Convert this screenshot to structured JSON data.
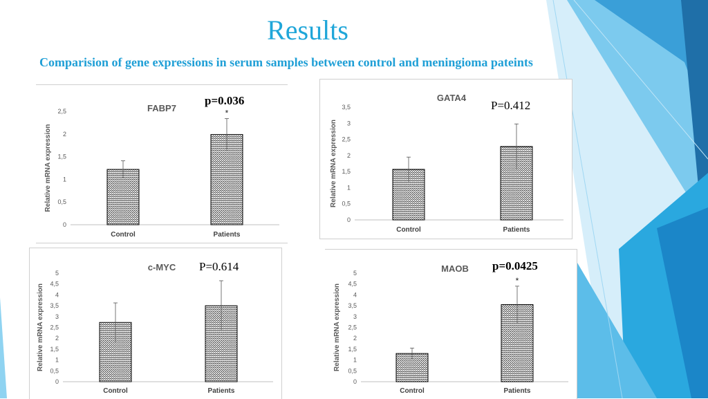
{
  "slide": {
    "title": "Results",
    "subtitle": "Comparision of gene expressions in serum samples between control and meningioma pateints"
  },
  "colors": {
    "title": "#1fa6d9",
    "decor_light": "#8fd3f1",
    "decor_mid": "#2aa8df",
    "decor_dark": "#1f6fa8",
    "bar_pattern": "#333333"
  },
  "chart_data": [
    {
      "type": "bar",
      "title": "FABP7",
      "ylabel": "Relative mRNA expression",
      "categories": [
        "Control",
        "Patients"
      ],
      "values": [
        1.22,
        1.99
      ],
      "errors": [
        0.19,
        0.35
      ],
      "ylim": [
        0,
        2.5
      ],
      "yticks": [
        "0",
        "0,5",
        "1",
        "1,5",
        "2",
        "2,5"
      ],
      "p_value": "p=0.036",
      "significance": [
        "",
        "*"
      ],
      "grid": false
    },
    {
      "type": "bar",
      "title": "GATA4",
      "ylabel": "Relative mRNA expression",
      "categories": [
        "Control",
        "Patients"
      ],
      "values": [
        1.57,
        2.28
      ],
      "errors": [
        0.38,
        0.7
      ],
      "ylim": [
        0,
        3.5
      ],
      "yticks": [
        "0",
        "0,5",
        "1",
        "1,5",
        "2",
        "2,5",
        "3",
        "3,5"
      ],
      "p_value": "P=0.412",
      "significance": [
        "",
        ""
      ],
      "grid": false
    },
    {
      "type": "bar",
      "title": "c-MYC",
      "ylabel": "Relative mRNA expression",
      "categories": [
        "Control",
        "Patients"
      ],
      "values": [
        2.73,
        3.5
      ],
      "errors": [
        0.9,
        1.15
      ],
      "ylim": [
        0,
        5
      ],
      "yticks": [
        "0",
        "0,5",
        "1",
        "1,5",
        "2",
        "2,5",
        "3",
        "3,5",
        "4",
        "4,5",
        "5"
      ],
      "p_value": "P=0.614",
      "significance": [
        "",
        ""
      ],
      "grid": false
    },
    {
      "type": "bar",
      "title": "MAOB",
      "ylabel": "Relative mRNA expression",
      "categories": [
        "Control",
        "Patients"
      ],
      "values": [
        1.3,
        3.55
      ],
      "errors": [
        0.25,
        0.85
      ],
      "ylim": [
        0,
        5
      ],
      "yticks": [
        "0",
        "0,5",
        "1",
        "1,5",
        "2",
        "2,5",
        "3",
        "3,5",
        "4",
        "4,5",
        "5"
      ],
      "p_value": "p=0.0425",
      "significance": [
        "",
        "*"
      ],
      "grid": false
    }
  ]
}
